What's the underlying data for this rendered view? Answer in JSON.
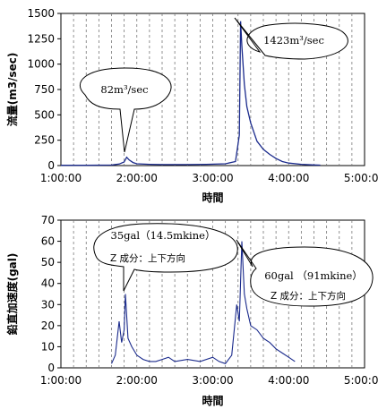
{
  "chart_data": [
    {
      "type": "line",
      "title": "",
      "xlabel": "時間",
      "ylabel": "流量(m3/sec)",
      "x_ticks": [
        "1:00:00",
        "2:00:00",
        "3:00:00",
        "4:00:00",
        "5:00:00"
      ],
      "xlim": [
        "1:00:00",
        "5:00:00"
      ],
      "ylim": [
        0,
        1500
      ],
      "y_ticks": [
        0,
        250,
        500,
        750,
        1000,
        1250,
        1500
      ],
      "grid": "vertical dashed every 10 min",
      "series_color": "#1a2a8c",
      "series": [
        {
          "x": [
            "1:00:00",
            "1:20:00",
            "1:40:00",
            "1:46:00",
            "1:50:00",
            "1:52:00",
            "1:54:00",
            "1:57:00",
            "2:00:00",
            "2:10:00",
            "2:20:00",
            "2:40:00",
            "2:55:00",
            "3:10:00",
            "3:18:00",
            "3:21:00",
            "3:22:00",
            "3:23:00",
            "3:25:00",
            "3:27:00",
            "3:30:00",
            "3:35:00",
            "3:40:00",
            "3:45:00",
            "3:50:00",
            "3:55:00",
            "4:00:00",
            "4:10:00",
            "4:20:00",
            "4:25:00"
          ],
          "values": [
            3,
            3,
            5,
            15,
            35,
            82,
            55,
            30,
            18,
            12,
            10,
            10,
            12,
            18,
            40,
            300,
            1423,
            1180,
            800,
            580,
            420,
            240,
            160,
            110,
            70,
            40,
            25,
            12,
            6,
            4
          ]
        }
      ],
      "annotations": [
        {
          "text": "82m³/sec"
        },
        {
          "text": "1423m³/sec"
        }
      ]
    },
    {
      "type": "line",
      "title": "",
      "xlabel": "時間",
      "ylabel": "鉛直加速度(gal)",
      "x_ticks": [
        "1:00:00",
        "2:00:00",
        "3:00:00",
        "4:00:00",
        "5:00:00"
      ],
      "xlim": [
        "1:00:00",
        "5:00:00"
      ],
      "ylim": [
        0,
        70
      ],
      "y_ticks": [
        0,
        10,
        20,
        30,
        40,
        50,
        60,
        70
      ],
      "grid": "vertical dashed every 10 min",
      "series_color": "#1a2a8c",
      "series": [
        {
          "x": [
            "1:40:00",
            "1:43:00",
            "1:46:00",
            "1:48:00",
            "1:50:00",
            "1:51:00",
            "1:53:00",
            "1:56:00",
            "2:00:00",
            "2:05:00",
            "2:10:00",
            "2:15:00",
            "2:20:00",
            "2:25:00",
            "2:30:00",
            "2:40:00",
            "2:50:00",
            "3:00:00",
            "3:05:00",
            "3:10:00",
            "3:15:00",
            "3:17:00",
            "3:19:00",
            "3:21:00",
            "3:23:00",
            "3:25:00",
            "3:27:00",
            "3:30:00",
            "3:35:00",
            "3:40:00",
            "3:45:00",
            "3:50:00",
            "3:55:00",
            "4:00:00",
            "4:05:00"
          ],
          "values": [
            2,
            6,
            22,
            12,
            18,
            35,
            14,
            10,
            6,
            4,
            3,
            3,
            4,
            5,
            3,
            4,
            3,
            5,
            3,
            2,
            6,
            18,
            30,
            22,
            60,
            35,
            28,
            20,
            18,
            14,
            12,
            9,
            7,
            5,
            3
          ]
        }
      ],
      "annotations": [
        {
          "text": "35gal（14.5mkine）",
          "sub": "Z 成分：上下方向"
        },
        {
          "text": "60gal （91mkine）",
          "sub": "Z 成分：上下方向"
        }
      ]
    }
  ]
}
